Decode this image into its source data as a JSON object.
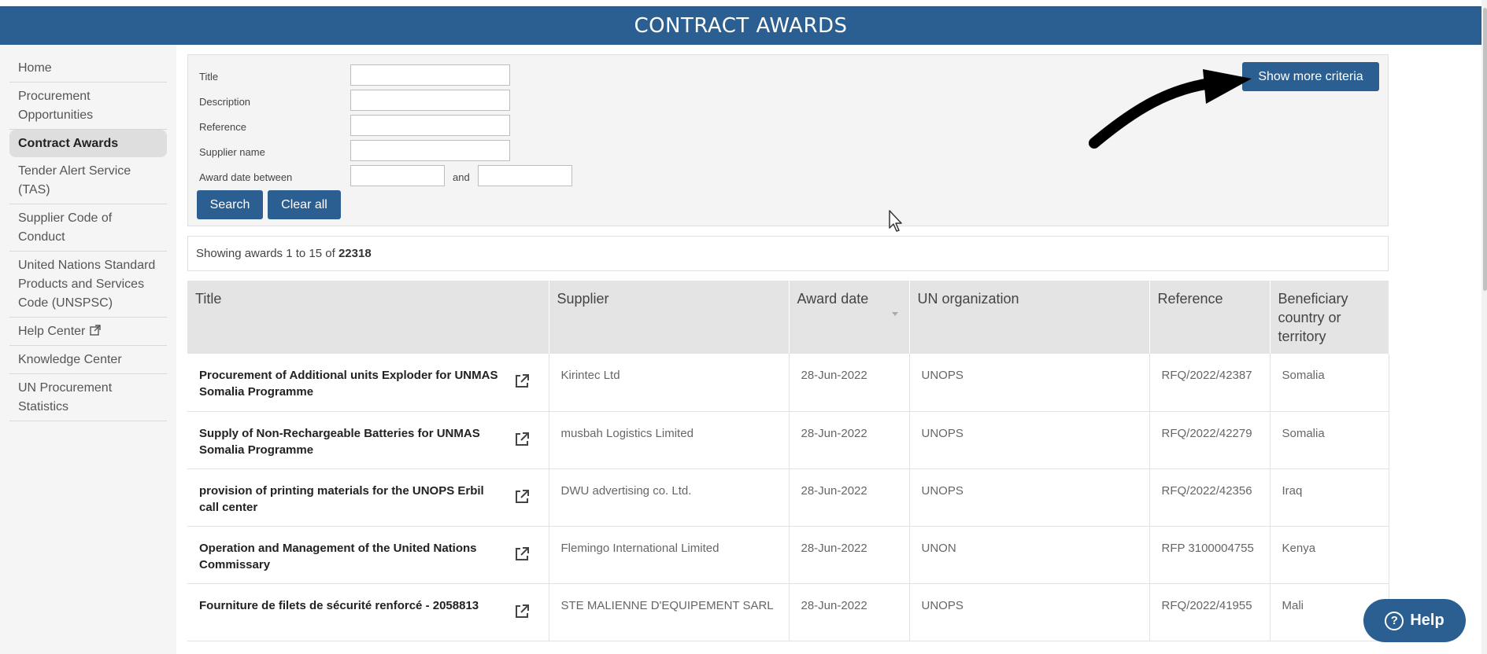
{
  "header": {
    "title": "CONTRACT AWARDS"
  },
  "sidebar": {
    "items": [
      {
        "label": "Home"
      },
      {
        "label": "Procurement Opportunities"
      },
      {
        "label": "Contract Awards",
        "active": true
      },
      {
        "label": "Tender Alert Service (TAS)"
      },
      {
        "label": "Supplier Code of Conduct"
      },
      {
        "label": "United Nations Standard Products and Services Code (UNSPSC)"
      },
      {
        "label": "Help Center",
        "external": true
      },
      {
        "label": "Knowledge Center"
      },
      {
        "label": "UN Procurement Statistics"
      }
    ]
  },
  "search": {
    "title_label": "Title",
    "description_label": "Description",
    "reference_label": "Reference",
    "supplier_label": "Supplier name",
    "award_date_label": "Award date between",
    "and_label": "and",
    "search_button": "Search",
    "clear_button": "Clear all",
    "more_button": "Show more criteria"
  },
  "results": {
    "prefix": "Showing awards 1 to 15  of ",
    "total": "22318"
  },
  "table": {
    "headers": [
      "Title",
      "Supplier",
      "Award date",
      "UN organization",
      "Reference",
      "Beneficiary country or territory"
    ],
    "rows": [
      {
        "title": "Procurement of Additional units Exploder for UNMAS Somalia Programme",
        "supplier": "Kirintec Ltd",
        "date": "28-Jun-2022",
        "org": "UNOPS",
        "ref": "RFQ/2022/42387",
        "country": "Somalia"
      },
      {
        "title": "Supply of Non-Rechargeable Batteries for UNMAS Somalia Programme",
        "supplier": "musbah Logistics Limited",
        "date": "28-Jun-2022",
        "org": "UNOPS",
        "ref": "RFQ/2022/42279",
        "country": "Somalia"
      },
      {
        "title": "provision of printing materials for the UNOPS Erbil call center",
        "supplier": "DWU advertising co. Ltd.",
        "date": "28-Jun-2022",
        "org": "UNOPS",
        "ref": "RFQ/2022/42356",
        "country": "Iraq"
      },
      {
        "title": "Operation and Management of the United Nations Commissary",
        "supplier": "Flemingo International Limited",
        "date": "28-Jun-2022",
        "org": "UNON",
        "ref": "RFP 3100004755",
        "country": "Kenya"
      },
      {
        "title": "Fourniture de filets de sécurité renforcé - 2058813",
        "supplier": "STE MALIENNE D'EQUIPEMENT SARL",
        "date": "28-Jun-2022",
        "org": "UNOPS",
        "ref": "RFQ/2022/41955",
        "country": "Mali"
      }
    ]
  },
  "help": {
    "label": "Help",
    "glyph": "?"
  },
  "colors": {
    "primary": "#2c5f91",
    "sidebar_bg": "#f5f5f5",
    "panel_bg": "#f4f4f4"
  }
}
